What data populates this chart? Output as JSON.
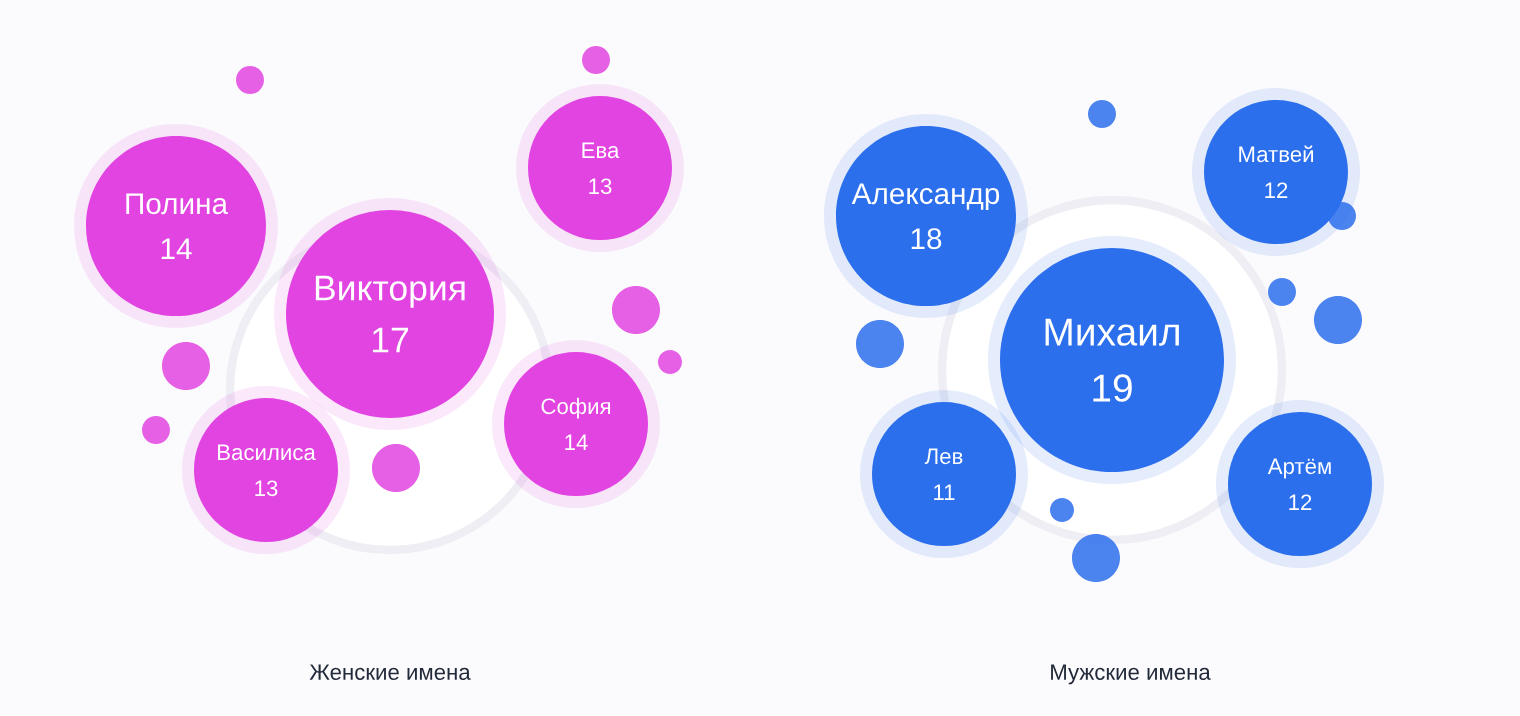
{
  "chart_data": [
    {
      "type": "other",
      "xlabel": "Женские имена",
      "color": "#e244e2",
      "data_labels": true,
      "categories": [
        "Полина",
        "Виктория",
        "Ева",
        "София",
        "Василиса"
      ],
      "values": [
        14,
        17,
        13,
        14,
        13
      ]
    },
    {
      "type": "other",
      "xlabel": "Мужские имена",
      "color": "#2b6fec",
      "data_labels": true,
      "categories": [
        "Александр",
        "Михаил",
        "Матвей",
        "Лев",
        "Артём"
      ],
      "values": [
        18,
        19,
        12,
        11,
        12
      ]
    }
  ]
}
